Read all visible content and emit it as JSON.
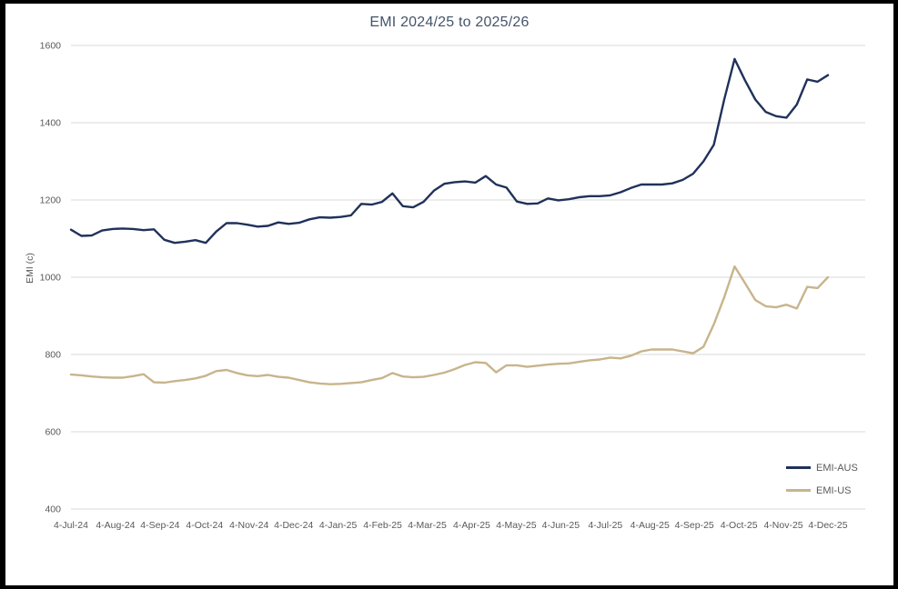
{
  "chart_data": {
    "type": "line",
    "title": "EMI 2024/25 to 2025/26",
    "ylabel": "EMI (c)",
    "xlabel": "",
    "ylim": [
      400,
      1600
    ],
    "y_ticks": [
      400,
      600,
      800,
      1000,
      1200,
      1400,
      1600
    ],
    "x_tick_labels": [
      "4-Jul-24",
      "4-Aug-24",
      "4-Sep-24",
      "4-Oct-24",
      "4-Nov-24",
      "4-Dec-24",
      "4-Jan-25",
      "4-Feb-25",
      "4-Mar-25",
      "4-Apr-25",
      "4-May-25",
      "4-Jun-25",
      "4-Jul-25",
      "4-Aug-25",
      "4-Sep-25",
      "4-Oct-25",
      "4-Nov-25",
      "4-Dec-25"
    ],
    "x_unit": "weekly points from 4-Jul-24 to 4-Dec-25",
    "grid": "horizontal",
    "legend_position": "bottom-right",
    "series": [
      {
        "name": "EMI-AUS",
        "color": "#20315A",
        "values": [
          1123,
          1107,
          1108,
          1121,
          1125,
          1126,
          1125,
          1122,
          1124,
          1097,
          1089,
          1092,
          1096,
          1089,
          1118,
          1140,
          1140,
          1136,
          1131,
          1133,
          1142,
          1138,
          1141,
          1150,
          1155,
          1154,
          1156,
          1160,
          1190,
          1188,
          1195,
          1217,
          1184,
          1181,
          1195,
          1224,
          1242,
          1246,
          1248,
          1245,
          1262,
          1240,
          1232,
          1196,
          1190,
          1191,
          1204,
          1199,
          1202,
          1207,
          1210,
          1210,
          1212,
          1220,
          1231,
          1240,
          1240,
          1240,
          1243,
          1252,
          1268,
          1300,
          1343,
          1460,
          1565,
          1510,
          1460,
          1428,
          1417,
          1413,
          1447,
          1512,
          1506,
          1523
        ]
      },
      {
        "name": "EMI-US",
        "color": "#C8B48C",
        "values": [
          748,
          746,
          743,
          741,
          740,
          740,
          744,
          749,
          728,
          727,
          731,
          734,
          738,
          745,
          757,
          760,
          752,
          746,
          744,
          747,
          742,
          740,
          734,
          728,
          725,
          723,
          724,
          726,
          728,
          734,
          739,
          752,
          743,
          741,
          742,
          747,
          753,
          762,
          773,
          780,
          778,
          754,
          772,
          772,
          768,
          771,
          774,
          776,
          777,
          781,
          785,
          787,
          792,
          790,
          797,
          808,
          813,
          813,
          813,
          808,
          803,
          820,
          878,
          948,
          1028,
          985,
          941,
          925,
          922,
          929,
          919,
          975,
          972,
          1000
        ]
      }
    ]
  },
  "colors": {
    "background": "#FFFFFF",
    "frame_border": "#000000",
    "gridline": "#D9D9D9",
    "tick_text": "#595959",
    "title_text": "#44546A"
  }
}
